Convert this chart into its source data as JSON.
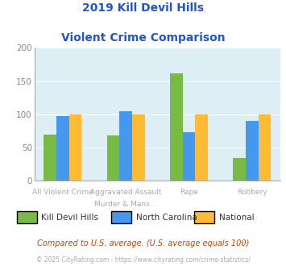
{
  "title_line1": "2019 Kill Devil Hills",
  "title_line2": "Violent Crime Comparison",
  "cat_labels_top": [
    "",
    "Aggravated Assault",
    "",
    ""
  ],
  "cat_labels_bottom": [
    "All Violent Crime",
    "Murder & Mans...",
    "Rape",
    "Robbery"
  ],
  "series": {
    "Kill Devil Hills": [
      70,
      68,
      162,
      35
    ],
    "North Carolina": [
      98,
      105,
      73,
      90
    ],
    "National": [
      100,
      100,
      100,
      100
    ]
  },
  "colors": {
    "Kill Devil Hills": "#77bb44",
    "North Carolina": "#4499ee",
    "National": "#ffbb33"
  },
  "ylim": [
    0,
    200
  ],
  "yticks": [
    0,
    50,
    100,
    150,
    200
  ],
  "background_color": "#ddeef5",
  "title_color": "#2255cc",
  "axis_label_color": "#aaaaaa",
  "footer_text": "Compared to U.S. average. (U.S. average equals 100)",
  "copyright_text": "© 2025 CityRating.com - https://www.cityrating.com/crime-statistics/",
  "footer_color": "#cc4400",
  "copyright_color": "#aaaaaa"
}
